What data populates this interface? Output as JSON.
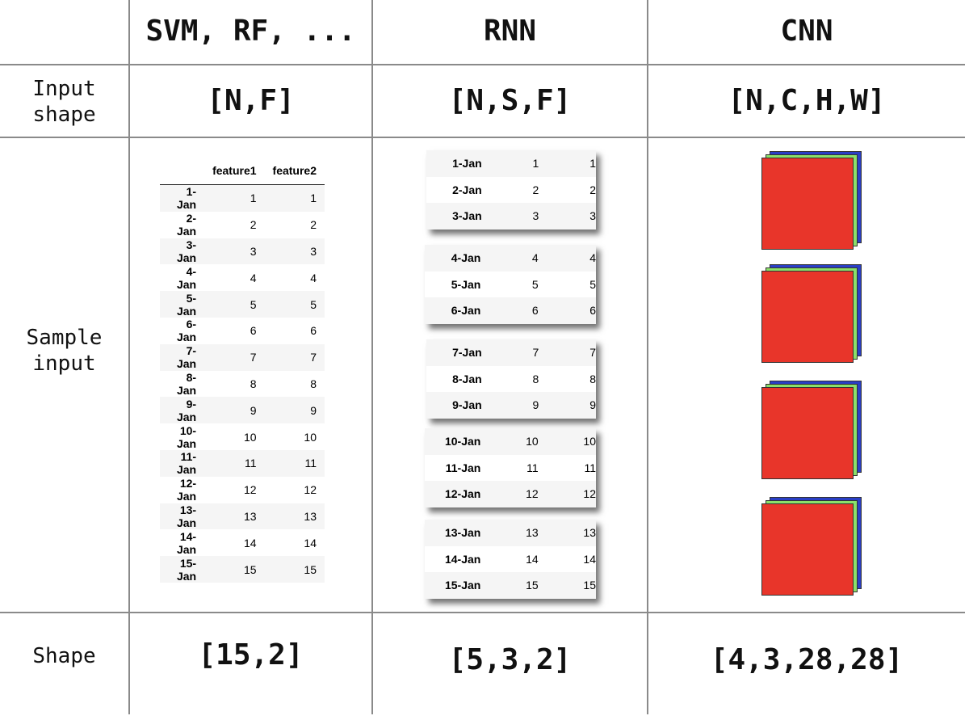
{
  "columns": {
    "ml": "SVM, RF, ...",
    "rnn": "RNN",
    "cnn": "CNN"
  },
  "rows": {
    "input_shape": "Input\nshape",
    "sample_input": "Sample\ninput",
    "shape": "Shape"
  },
  "input_shapes": {
    "ml": "[N,F]",
    "rnn": "[N,S,F]",
    "cnn": "[N,C,H,W]"
  },
  "shapes": {
    "ml": "[15,2]",
    "rnn": "[5,3,2]",
    "cnn": "[4,3,28,28]"
  },
  "table": {
    "headers": [
      "",
      "feature1",
      "feature2"
    ],
    "rows": [
      [
        "1-Jan",
        "1",
        "1"
      ],
      [
        "2-Jan",
        "2",
        "2"
      ],
      [
        "3-Jan",
        "3",
        "3"
      ],
      [
        "4-Jan",
        "4",
        "4"
      ],
      [
        "5-Jan",
        "5",
        "5"
      ],
      [
        "6-Jan",
        "6",
        "6"
      ],
      [
        "7-Jan",
        "7",
        "7"
      ],
      [
        "8-Jan",
        "8",
        "8"
      ],
      [
        "9-Jan",
        "9",
        "9"
      ],
      [
        "10-Jan",
        "10",
        "10"
      ],
      [
        "11-Jan",
        "11",
        "11"
      ],
      [
        "12-Jan",
        "12",
        "12"
      ],
      [
        "13-Jan",
        "13",
        "13"
      ],
      [
        "14-Jan",
        "14",
        "14"
      ],
      [
        "15-Jan",
        "15",
        "15"
      ]
    ]
  },
  "rnn_sequences": [
    [
      [
        "1-Jan",
        "1",
        "1"
      ],
      [
        "2-Jan",
        "2",
        "2"
      ],
      [
        "3-Jan",
        "3",
        "3"
      ]
    ],
    [
      [
        "4-Jan",
        "4",
        "4"
      ],
      [
        "5-Jan",
        "5",
        "5"
      ],
      [
        "6-Jan",
        "6",
        "6"
      ]
    ],
    [
      [
        "7-Jan",
        "7",
        "7"
      ],
      [
        "8-Jan",
        "8",
        "8"
      ],
      [
        "9-Jan",
        "9",
        "9"
      ]
    ],
    [
      [
        "10-Jan",
        "10",
        "10"
      ],
      [
        "11-Jan",
        "11",
        "11"
      ],
      [
        "12-Jan",
        "12",
        "12"
      ]
    ],
    [
      [
        "13-Jan",
        "13",
        "13"
      ],
      [
        "14-Jan",
        "14",
        "14"
      ],
      [
        "15-Jan",
        "15",
        "15"
      ]
    ]
  ],
  "cnn": {
    "image_count": 4,
    "channel_colors": [
      "#2a3fc6",
      "#8be06a",
      "#e8352a"
    ]
  }
}
